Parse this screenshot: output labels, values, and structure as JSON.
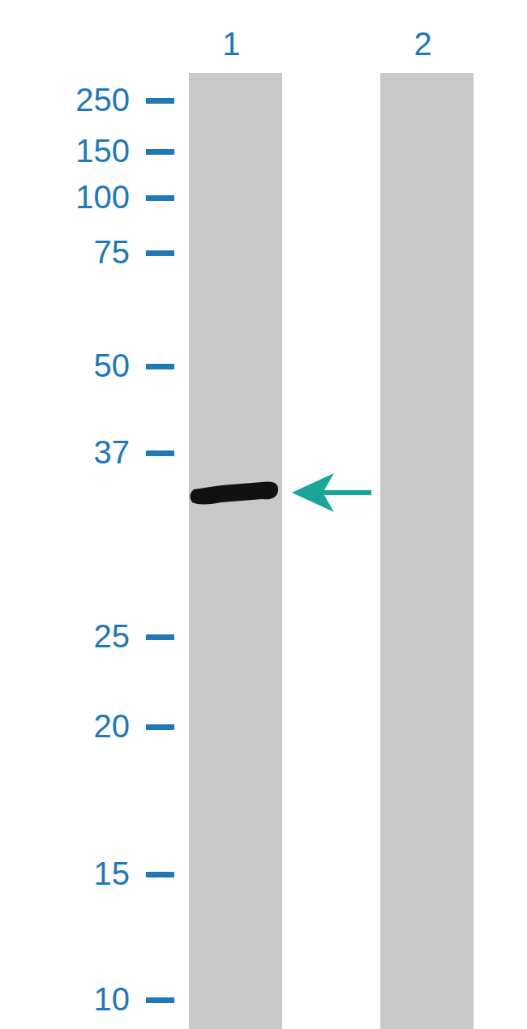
{
  "chart_data": {
    "type": "western_blot",
    "categories": [
      "1",
      "2"
    ],
    "values": [
      34,
      null
    ],
    "color": "#111111",
    "log": "y",
    "ylim": [
      10,
      250
    ],
    "yticks": [
      250,
      150,
      100,
      75,
      50,
      37,
      25,
      20,
      15,
      10
    ]
  }
}
